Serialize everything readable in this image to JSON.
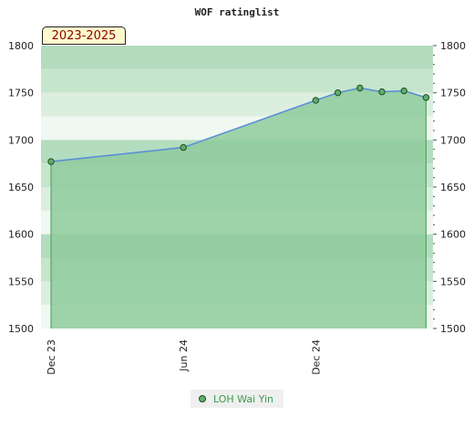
{
  "chart_data": {
    "type": "area",
    "title": "WOF ratinglist",
    "period_label": "2023-2025",
    "x": [
      "2023-12",
      "2024-06",
      "2024-12",
      "2025-01",
      "2025-02",
      "2025-03",
      "2025-04",
      "2025-05"
    ],
    "x_tick_labels": [
      "Dec 23",
      "Jun 24",
      "Dec 24"
    ],
    "x_tick_positions": [
      0,
      6,
      12
    ],
    "series": [
      {
        "name": "LOH Wai Yin",
        "x_index": [
          0,
          6,
          12,
          13,
          14,
          15,
          16,
          17
        ],
        "values": [
          1677,
          1692,
          1742,
          1750,
          1755,
          1751,
          1752,
          1745
        ]
      }
    ],
    "ylim": [
      1500,
      1800
    ],
    "y_ticks": [
      1500,
      1550,
      1600,
      1650,
      1700,
      1750,
      1800
    ],
    "xlabel": "",
    "ylabel": "",
    "legend": "bottom-center",
    "colors": {
      "line": "#5a8fd6",
      "area": "#8fcb9c",
      "marker": "#5fae6a",
      "legend_text": "#3a9c4c"
    }
  }
}
